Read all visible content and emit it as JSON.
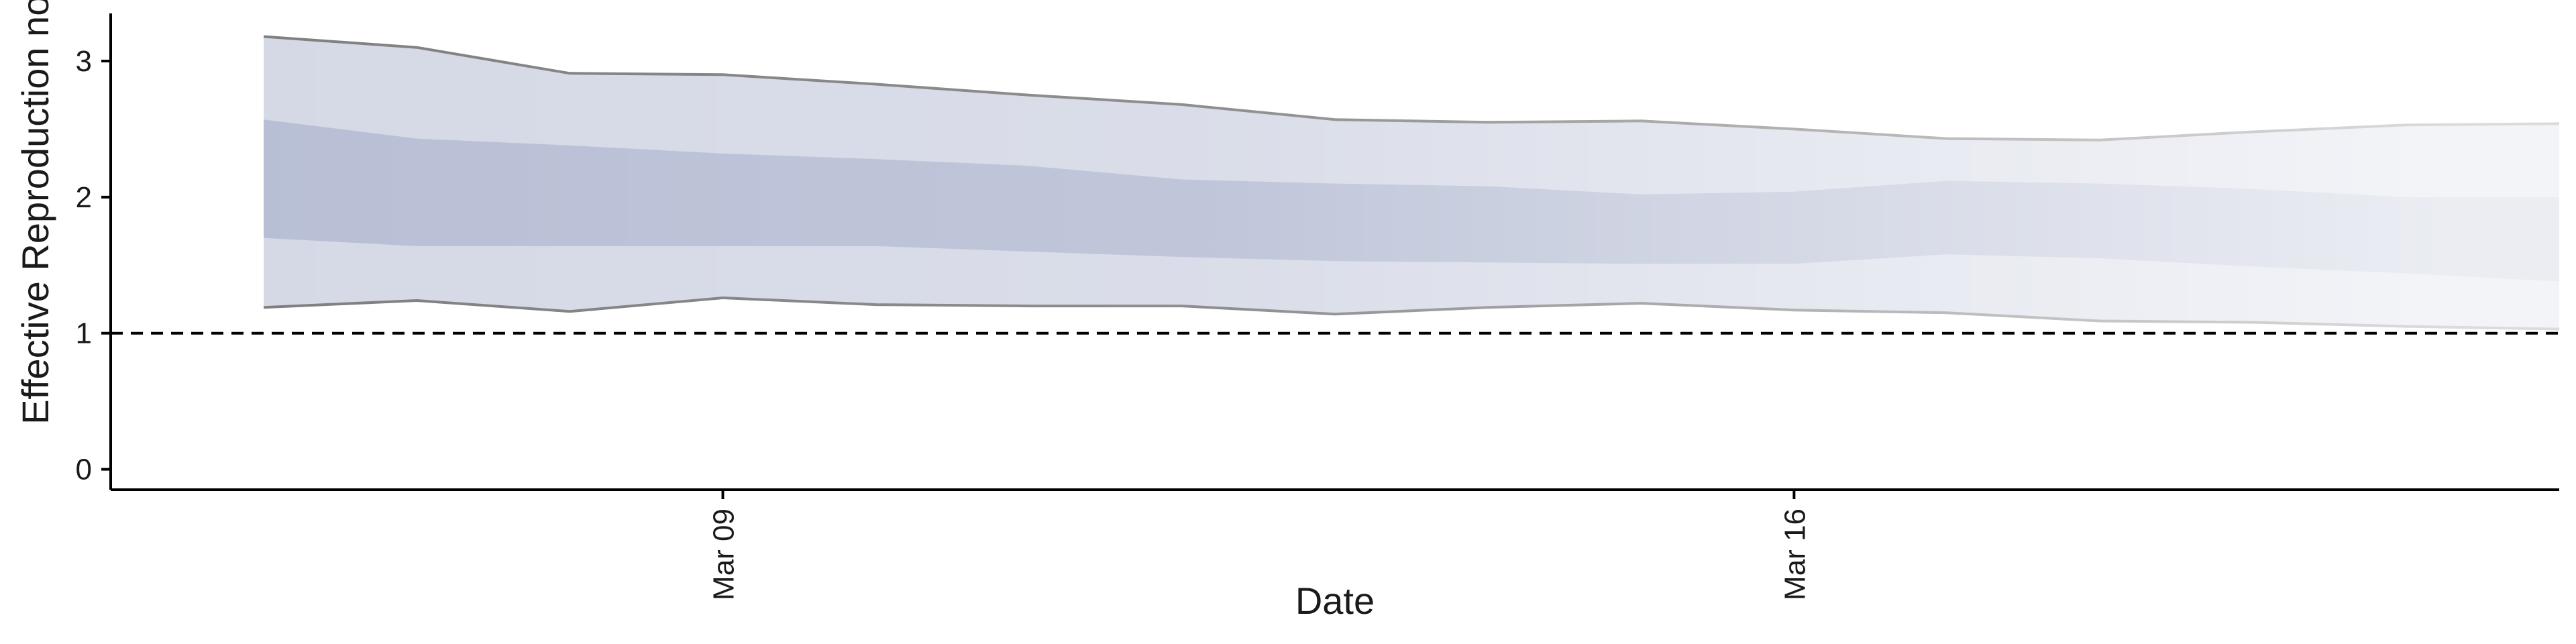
{
  "chart_data": {
    "type": "area",
    "title": "",
    "xlabel": "Date",
    "ylabel": "Effective Reproduction no.",
    "x_ticks": [
      {
        "date": "2020-03-09",
        "label": "Mar 09"
      },
      {
        "date": "2020-03-16",
        "label": "Mar 16"
      }
    ],
    "y_ticks": [
      0,
      1,
      2,
      3
    ],
    "ylim": [
      -0.15,
      3.35
    ],
    "xlim": [
      "2020-03-05",
      "2020-03-21"
    ],
    "reference_line": {
      "y": 1,
      "style": "dashed"
    },
    "grid": false,
    "x": [
      "2020-03-06",
      "2020-03-07",
      "2020-03-08",
      "2020-03-09",
      "2020-03-10",
      "2020-03-11",
      "2020-03-12",
      "2020-03-13",
      "2020-03-14",
      "2020-03-15",
      "2020-03-16",
      "2020-03-17",
      "2020-03-18",
      "2020-03-19",
      "2020-03-20",
      "2020-03-21"
    ],
    "series": [
      {
        "name": "",
        "band": "outer",
        "lower": [
          1.19,
          1.24,
          1.16,
          1.26,
          1.21,
          1.2,
          1.2,
          1.14,
          1.19,
          1.22,
          1.17,
          1.15,
          1.09,
          1.08,
          1.05,
          1.03
        ],
        "upper": [
          3.18,
          3.1,
          2.91,
          2.9,
          2.83,
          2.75,
          2.68,
          2.57,
          2.55,
          2.56,
          2.5,
          2.43,
          2.42,
          2.48,
          2.53,
          2.54
        ]
      },
      {
        "name": "",
        "band": "inner",
        "lower": [
          1.7,
          1.64,
          1.64,
          1.64,
          1.64,
          1.6,
          1.56,
          1.53,
          1.52,
          1.51,
          1.51,
          1.58,
          1.55,
          1.49,
          1.44,
          1.38
        ],
        "upper": [
          2.57,
          2.43,
          2.38,
          2.32,
          2.28,
          2.23,
          2.13,
          2.1,
          2.08,
          2.02,
          2.04,
          2.12,
          2.1,
          2.06,
          2.0,
          2.0
        ]
      }
    ],
    "colors": {
      "outer_band": "#d5d9e6",
      "inner_band": "#b8bfd5",
      "bound_line": "#7f7f7f",
      "axis": "#000000",
      "reference_line": "#000000"
    },
    "fade": "bands lighten toward later dates"
  }
}
